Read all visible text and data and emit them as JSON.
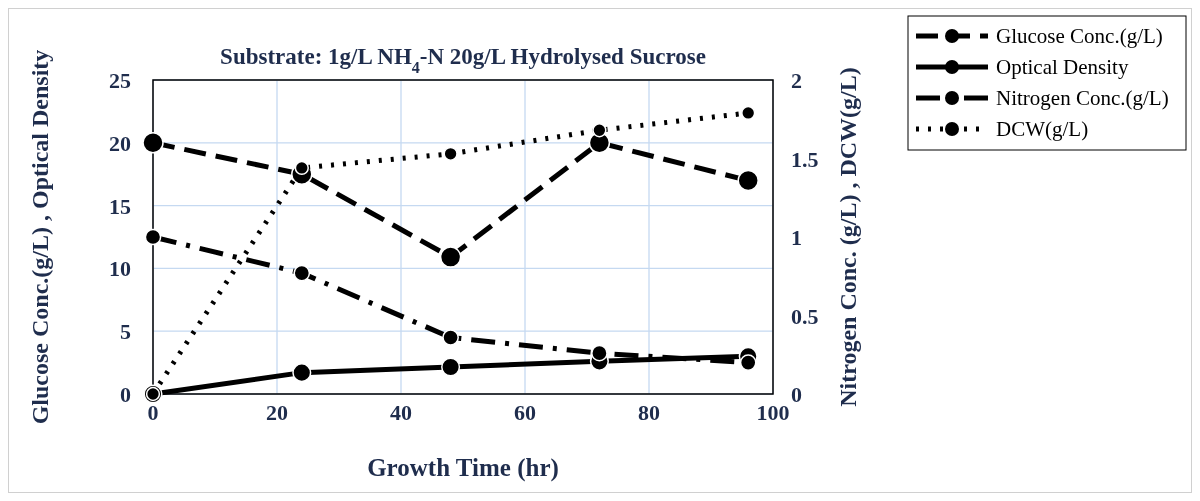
{
  "chart_data": {
    "type": "line",
    "title": "Substrate: 1g/L NH$_{4}$-N 20g/L Hydrolysed Sucrose",
    "xlabel": "Growth Time (hr)",
    "ylabel": "Glucose Conc.(g/L) , Optical Density",
    "y2label": "Nitrogen Conc. (g/L) , DCW(g/L)",
    "x": [
      0,
      24,
      48,
      72,
      96
    ],
    "xlim": [
      0,
      100
    ],
    "xticks": [
      0,
      20,
      40,
      60,
      80,
      100
    ],
    "ylim": [
      0,
      25
    ],
    "yticks": [
      0,
      5,
      10,
      15,
      20,
      25
    ],
    "y2lim": [
      0,
      2
    ],
    "y2ticks": [
      0,
      0.5,
      1,
      1.5,
      2
    ],
    "grid": true,
    "legend": "top right",
    "marker": "circle",
    "series": [
      {
        "name": "Glucose Conc.(g/L)",
        "color": "#000000",
        "line_style": "dashed",
        "values": [
          20,
          17.5,
          10.9,
          20,
          17
        ]
      },
      {
        "name": "Optical Density",
        "color": "#000000",
        "line_style": "solid",
        "values": [
          0,
          1.7,
          2.15,
          2.6,
          3
        ]
      },
      {
        "name": "Nitrogen Conc.(g/L)",
        "color": "#000000",
        "line_style": "dashdot",
        "axis": "y2",
        "values": [
          1,
          0.77,
          0.36,
          0.26,
          0.2
        ]
      },
      {
        "name": "DCW(g/L)",
        "color": "#000000",
        "line_style": "dotted",
        "axis": "y2",
        "values": [
          0,
          1.44,
          1.53,
          1.68,
          1.79
        ]
      }
    ]
  }
}
